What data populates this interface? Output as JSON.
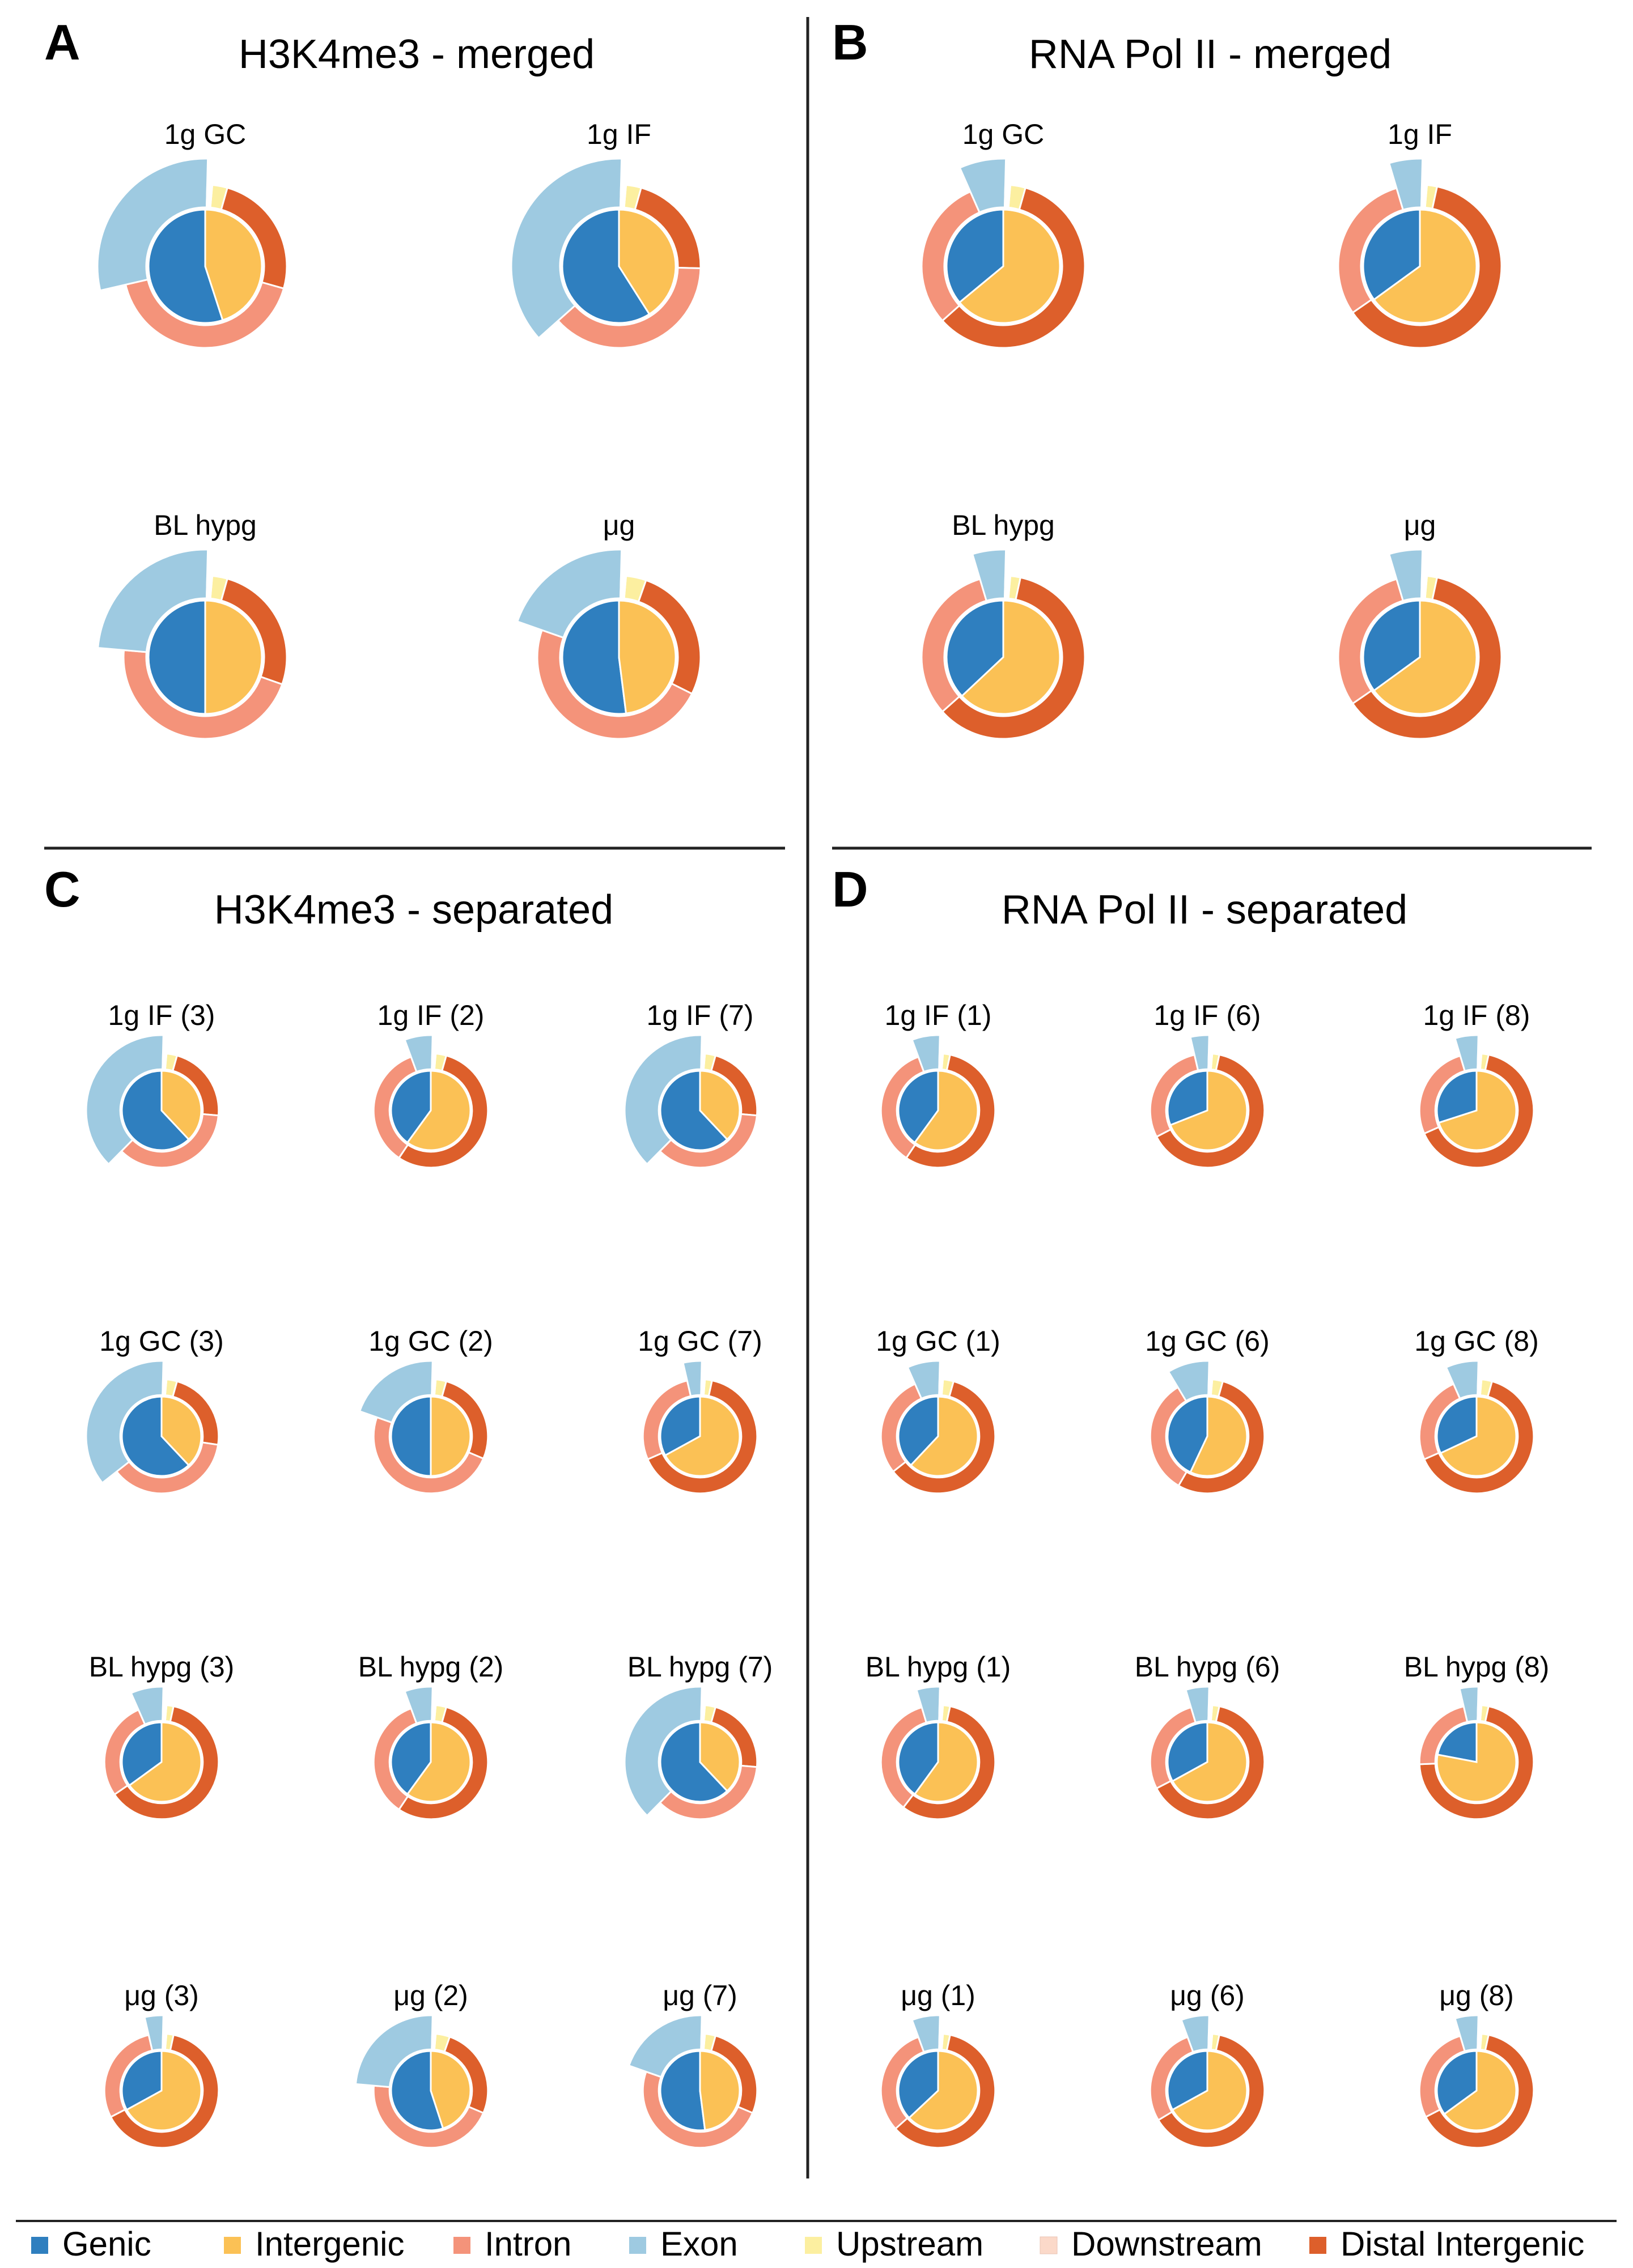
{
  "chart_data": {
    "type": "nested-donut",
    "description_units": "percent of peaks",
    "ring_structure": {
      "inner_ring": [
        "Genic",
        "Intergenic"
      ],
      "outer_ring": [
        "Exon",
        "Intron",
        "Upstream",
        "Downstream",
        "Distal Intergenic"
      ]
    },
    "legend": [
      {
        "label": "Genic",
        "color": "#2f7fbf"
      },
      {
        "label": "Intergenic",
        "color": "#fbc155"
      },
      {
        "label": "Intron",
        "color": "#f4937a"
      },
      {
        "label": "Exon",
        "color": "#9ecae1"
      },
      {
        "label": "Upstream",
        "color": "#fcefa0"
      },
      {
        "label": "Downstream",
        "color": "#fbd9c9"
      },
      {
        "label": "Distal Intergenic",
        "color": "#dd5f2b"
      }
    ],
    "panels": [
      {
        "letter": "A",
        "title": "H3K4me3 - merged",
        "charts": [
          {
            "label": "1g GC",
            "inner": {
              "Genic": 55,
              "Intergenic": 45
            },
            "outer": {
              "Exon": 29,
              "Intron": 42,
              "Upstream": 3,
              "Downstream": 1,
              "Distal Intergenic": 25
            }
          },
          {
            "label": "1g IF",
            "inner": {
              "Genic": 59,
              "Intergenic": 41
            },
            "outer": {
              "Exon": 37,
              "Intron": 38,
              "Upstream": 3,
              "Downstream": 1,
              "Distal Intergenic": 21
            }
          },
          {
            "label": "BL hypg",
            "inner": {
              "Genic": 50,
              "Intergenic": 50
            },
            "outer": {
              "Exon": 24,
              "Intron": 46,
              "Upstream": 3,
              "Downstream": 1,
              "Distal Intergenic": 26
            }
          },
          {
            "label": "μg",
            "inner": {
              "Genic": 52,
              "Intergenic": 48
            },
            "outer": {
              "Exon": 20,
              "Intron": 48,
              "Upstream": 4,
              "Downstream": 1,
              "Distal Intergenic": 27
            }
          }
        ]
      },
      {
        "letter": "B",
        "title": "RNA Pol II - merged",
        "charts": [
          {
            "label": "1g GC",
            "inner": {
              "Genic": 36,
              "Intergenic": 64
            },
            "outer": {
              "Exon": 7,
              "Intron": 30,
              "Upstream": 3,
              "Downstream": 1,
              "Distal Intergenic": 59
            }
          },
          {
            "label": "1g IF",
            "inner": {
              "Genic": 35,
              "Intergenic": 65
            },
            "outer": {
              "Exon": 5,
              "Intron": 30,
              "Upstream": 2,
              "Downstream": 1,
              "Distal Intergenic": 62
            }
          },
          {
            "label": "BL hypg",
            "inner": {
              "Genic": 37,
              "Intergenic": 63
            },
            "outer": {
              "Exon": 5,
              "Intron": 32,
              "Upstream": 2,
              "Downstream": 1,
              "Distal Intergenic": 60
            }
          },
          {
            "label": "μg",
            "inner": {
              "Genic": 35,
              "Intergenic": 65
            },
            "outer": {
              "Exon": 5,
              "Intron": 30,
              "Upstream": 2,
              "Downstream": 1,
              "Distal Intergenic": 62
            }
          }
        ]
      },
      {
        "letter": "C",
        "title": "H3K4me3 - separated",
        "charts": [
          {
            "label": "1g IF (3)",
            "inner": {
              "Genic": 62,
              "Intergenic": 38
            },
            "outer": {
              "Exon": 38,
              "Intron": 36,
              "Upstream": 3,
              "Downstream": 1,
              "Distal Intergenic": 22
            }
          },
          {
            "label": "1g IF (2)",
            "inner": {
              "Genic": 40,
              "Intergenic": 60
            },
            "outer": {
              "Exon": 6,
              "Intron": 35,
              "Upstream": 3,
              "Downstream": 1,
              "Distal Intergenic": 55
            }
          },
          {
            "label": "1g IF (7)",
            "inner": {
              "Genic": 62,
              "Intergenic": 38
            },
            "outer": {
              "Exon": 38,
              "Intron": 36,
              "Upstream": 3,
              "Downstream": 1,
              "Distal Intergenic": 22
            }
          },
          {
            "label": "1g GC (3)",
            "inner": {
              "Genic": 62,
              "Intergenic": 38
            },
            "outer": {
              "Exon": 36,
              "Intron": 37,
              "Upstream": 3,
              "Downstream": 1,
              "Distal Intergenic": 23
            }
          },
          {
            "label": "1g GC (2)",
            "inner": {
              "Genic": 50,
              "Intergenic": 50
            },
            "outer": {
              "Exon": 20,
              "Intron": 49,
              "Upstream": 3,
              "Downstream": 1,
              "Distal Intergenic": 27
            }
          },
          {
            "label": "1g GC (7)",
            "inner": {
              "Genic": 33,
              "Intergenic": 67
            },
            "outer": {
              "Exon": 4,
              "Intron": 28,
              "Upstream": 2,
              "Downstream": 1,
              "Distal Intergenic": 65
            }
          },
          {
            "label": "BL hypg (3)",
            "inner": {
              "Genic": 35,
              "Intergenic": 65
            },
            "outer": {
              "Exon": 7,
              "Intron": 28,
              "Upstream": 2,
              "Downstream": 1,
              "Distal Intergenic": 62
            }
          },
          {
            "label": "BL hypg (2)",
            "inner": {
              "Genic": 40,
              "Intergenic": 60
            },
            "outer": {
              "Exon": 6,
              "Intron": 35,
              "Upstream": 3,
              "Downstream": 1,
              "Distal Intergenic": 55
            }
          },
          {
            "label": "BL hypg (7)",
            "inner": {
              "Genic": 62,
              "Intergenic": 38
            },
            "outer": {
              "Exon": 38,
              "Intron": 36,
              "Upstream": 3,
              "Downstream": 1,
              "Distal Intergenic": 22
            }
          },
          {
            "label": "μg (3)",
            "inner": {
              "Genic": 33,
              "Intergenic": 67
            },
            "outer": {
              "Exon": 4,
              "Intron": 29,
              "Upstream": 2,
              "Downstream": 1,
              "Distal Intergenic": 64
            }
          },
          {
            "label": "μg (2)",
            "inner": {
              "Genic": 55,
              "Intergenic": 45
            },
            "outer": {
              "Exon": 24,
              "Intron": 45,
              "Upstream": 4,
              "Downstream": 1,
              "Distal Intergenic": 26
            }
          },
          {
            "label": "μg (7)",
            "inner": {
              "Genic": 52,
              "Intergenic": 48
            },
            "outer": {
              "Exon": 20,
              "Intron": 49,
              "Upstream": 3,
              "Downstream": 1,
              "Distal Intergenic": 27
            }
          }
        ]
      },
      {
        "letter": "D",
        "title": "RNA Pol II - separated",
        "charts": [
          {
            "label": "1g IF (1)",
            "inner": {
              "Genic": 40,
              "Intergenic": 60
            },
            "outer": {
              "Exon": 6,
              "Intron": 35,
              "Upstream": 2,
              "Downstream": 1,
              "Distal Intergenic": 56
            }
          },
          {
            "label": "1g IF (6)",
            "inner": {
              "Genic": 31,
              "Intergenic": 69
            },
            "outer": {
              "Exon": 4,
              "Intron": 29,
              "Upstream": 2,
              "Downstream": 1,
              "Distal Intergenic": 64
            }
          },
          {
            "label": "1g IF (8)",
            "inner": {
              "Genic": 30,
              "Intergenic": 70
            },
            "outer": {
              "Exon": 5,
              "Intron": 27,
              "Upstream": 2,
              "Downstream": 1,
              "Distal Intergenic": 65
            }
          },
          {
            "label": "1g GC (1)",
            "inner": {
              "Genic": 38,
              "Intergenic": 62
            },
            "outer": {
              "Exon": 7,
              "Intron": 29,
              "Upstream": 3,
              "Downstream": 1,
              "Distal Intergenic": 60
            }
          },
          {
            "label": "1g GC (6)",
            "inner": {
              "Genic": 43,
              "Intergenic": 57
            },
            "outer": {
              "Exon": 9,
              "Intron": 33,
              "Upstream": 3,
              "Downstream": 1,
              "Distal Intergenic": 54
            }
          },
          {
            "label": "1g GC (8)",
            "inner": {
              "Genic": 32,
              "Intergenic": 68
            },
            "outer": {
              "Exon": 7,
              "Intron": 25,
              "Upstream": 3,
              "Downstream": 1,
              "Distal Intergenic": 64
            }
          },
          {
            "label": "BL hypg (1)",
            "inner": {
              "Genic": 40,
              "Intergenic": 60
            },
            "outer": {
              "Exon": 5,
              "Intron": 35,
              "Upstream": 2,
              "Downstream": 1,
              "Distal Intergenic": 57
            }
          },
          {
            "label": "BL hypg (6)",
            "inner": {
              "Genic": 33,
              "Intergenic": 67
            },
            "outer": {
              "Exon": 5,
              "Intron": 28,
              "Upstream": 2,
              "Downstream": 1,
              "Distal Intergenic": 64
            }
          },
          {
            "label": "BL hypg (8)",
            "inner": {
              "Genic": 22,
              "Intergenic": 78
            },
            "outer": {
              "Exon": 4,
              "Intron": 22,
              "Upstream": 2,
              "Downstream": 1,
              "Distal Intergenic": 71
            }
          },
          {
            "label": "μg (1)",
            "inner": {
              "Genic": 37,
              "Intergenic": 63
            },
            "outer": {
              "Exon": 6,
              "Intron": 31,
              "Upstream": 2,
              "Downstream": 1,
              "Distal Intergenic": 60
            }
          },
          {
            "label": "μg (6)",
            "inner": {
              "Genic": 33,
              "Intergenic": 67
            },
            "outer": {
              "Exon": 6,
              "Intron": 28,
              "Upstream": 2,
              "Downstream": 1,
              "Distal Intergenic": 63
            }
          },
          {
            "label": "μg (8)",
            "inner": {
              "Genic": 35,
              "Intergenic": 65
            },
            "outer": {
              "Exon": 5,
              "Intron": 28,
              "Upstream": 2,
              "Downstream": 1,
              "Distal Intergenic": 64
            }
          }
        ]
      }
    ]
  }
}
